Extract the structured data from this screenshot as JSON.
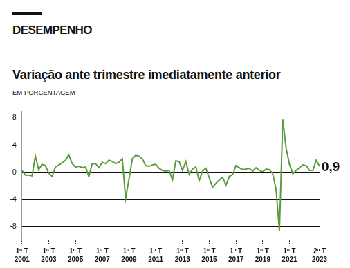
{
  "chart_data": {
    "type": "line",
    "header": "DESEMPENHO",
    "title": "Variação ante trimestre imediatamente anterior",
    "subtitle": "EM PORCENTAGEM",
    "categories": [
      [
        "1º T",
        "2001"
      ],
      null,
      null,
      null,
      null,
      null,
      null,
      null,
      [
        "1º T",
        "2003"
      ],
      null,
      null,
      null,
      null,
      null,
      null,
      null,
      [
        "1º T",
        "2005"
      ],
      null,
      null,
      null,
      null,
      null,
      null,
      null,
      [
        "1º T",
        "2007"
      ],
      null,
      null,
      null,
      null,
      null,
      null,
      null,
      [
        "1º T",
        "2009"
      ],
      null,
      null,
      null,
      null,
      null,
      null,
      null,
      [
        "1º T",
        "2011"
      ],
      null,
      null,
      null,
      null,
      null,
      null,
      null,
      [
        "1º T",
        "2013"
      ],
      null,
      null,
      null,
      null,
      null,
      null,
      null,
      [
        "1º T",
        "2015"
      ],
      null,
      null,
      null,
      null,
      null,
      null,
      null,
      [
        "1º T",
        "2017"
      ],
      null,
      null,
      null,
      null,
      null,
      null,
      null,
      [
        "1º T",
        "2019"
      ],
      null,
      null,
      null,
      null,
      null,
      null,
      null,
      [
        "1º T",
        "2021"
      ],
      null,
      null,
      null,
      null,
      null,
      null,
      null,
      null,
      [
        "2º T",
        "2023"
      ]
    ],
    "values": [
      0.3,
      -0.4,
      -0.4,
      -0.5,
      2.4,
      0.4,
      1.2,
      1.0,
      -0.1,
      -0.6,
      0.8,
      1.1,
      1.4,
      1.8,
      2.6,
      1.3,
      0.8,
      0.9,
      0.7,
      0.8,
      -0.6,
      1.3,
      1.3,
      0.7,
      1.5,
      1.3,
      1.8,
      1.6,
      1.3,
      1.5,
      2.0,
      -3.8,
      -1.0,
      2.0,
      2.5,
      2.4,
      2.0,
      1.0,
      0.9,
      1.1,
      1.2,
      0.6,
      0.3,
      0.2,
      0.3,
      -1.1,
      1.7,
      1.6,
      0.3,
      1.6,
      -0.3,
      0.5,
      0.8,
      -1.2,
      0.2,
      0.6,
      -0.8,
      -2.2,
      -1.6,
      -1.1,
      -0.7,
      -1.9,
      -0.6,
      -0.3,
      1.0,
      0.7,
      0.4,
      0.5,
      0.6,
      0.2,
      0.7,
      0.3,
      0.1,
      0.5,
      0.4,
      -0.2,
      -2.5,
      -8.6,
      7.8,
      3.6,
      1.2,
      -0.2,
      0.3,
      0.7,
      1.1,
      1.0,
      0.3,
      0.3,
      1.8,
      0.9
    ],
    "value_labels": [
      null,
      null,
      null,
      null,
      null,
      null,
      null,
      null,
      null,
      null,
      null,
      null,
      null,
      null,
      null,
      null,
      null,
      null,
      null,
      null,
      null,
      null,
      null,
      null,
      null,
      null,
      null,
      null,
      null,
      null,
      null,
      null,
      null,
      null,
      null,
      null,
      null,
      null,
      null,
      null,
      null,
      null,
      null,
      null,
      null,
      null,
      null,
      null,
      null,
      null,
      null,
      null,
      null,
      null,
      null,
      null,
      null,
      null,
      null,
      null,
      null,
      null,
      null,
      null,
      null,
      null,
      null,
      null,
      null,
      null,
      null,
      null,
      null,
      null,
      null,
      null,
      null,
      null,
      null,
      null,
      null,
      null,
      null,
      null,
      null,
      null,
      null,
      null,
      null,
      "0,9"
    ],
    "color": "#5b9a3e",
    "ylim": [
      -10,
      9
    ],
    "yticks": [
      -8,
      -4,
      0,
      4,
      8
    ],
    "grid": true
  }
}
